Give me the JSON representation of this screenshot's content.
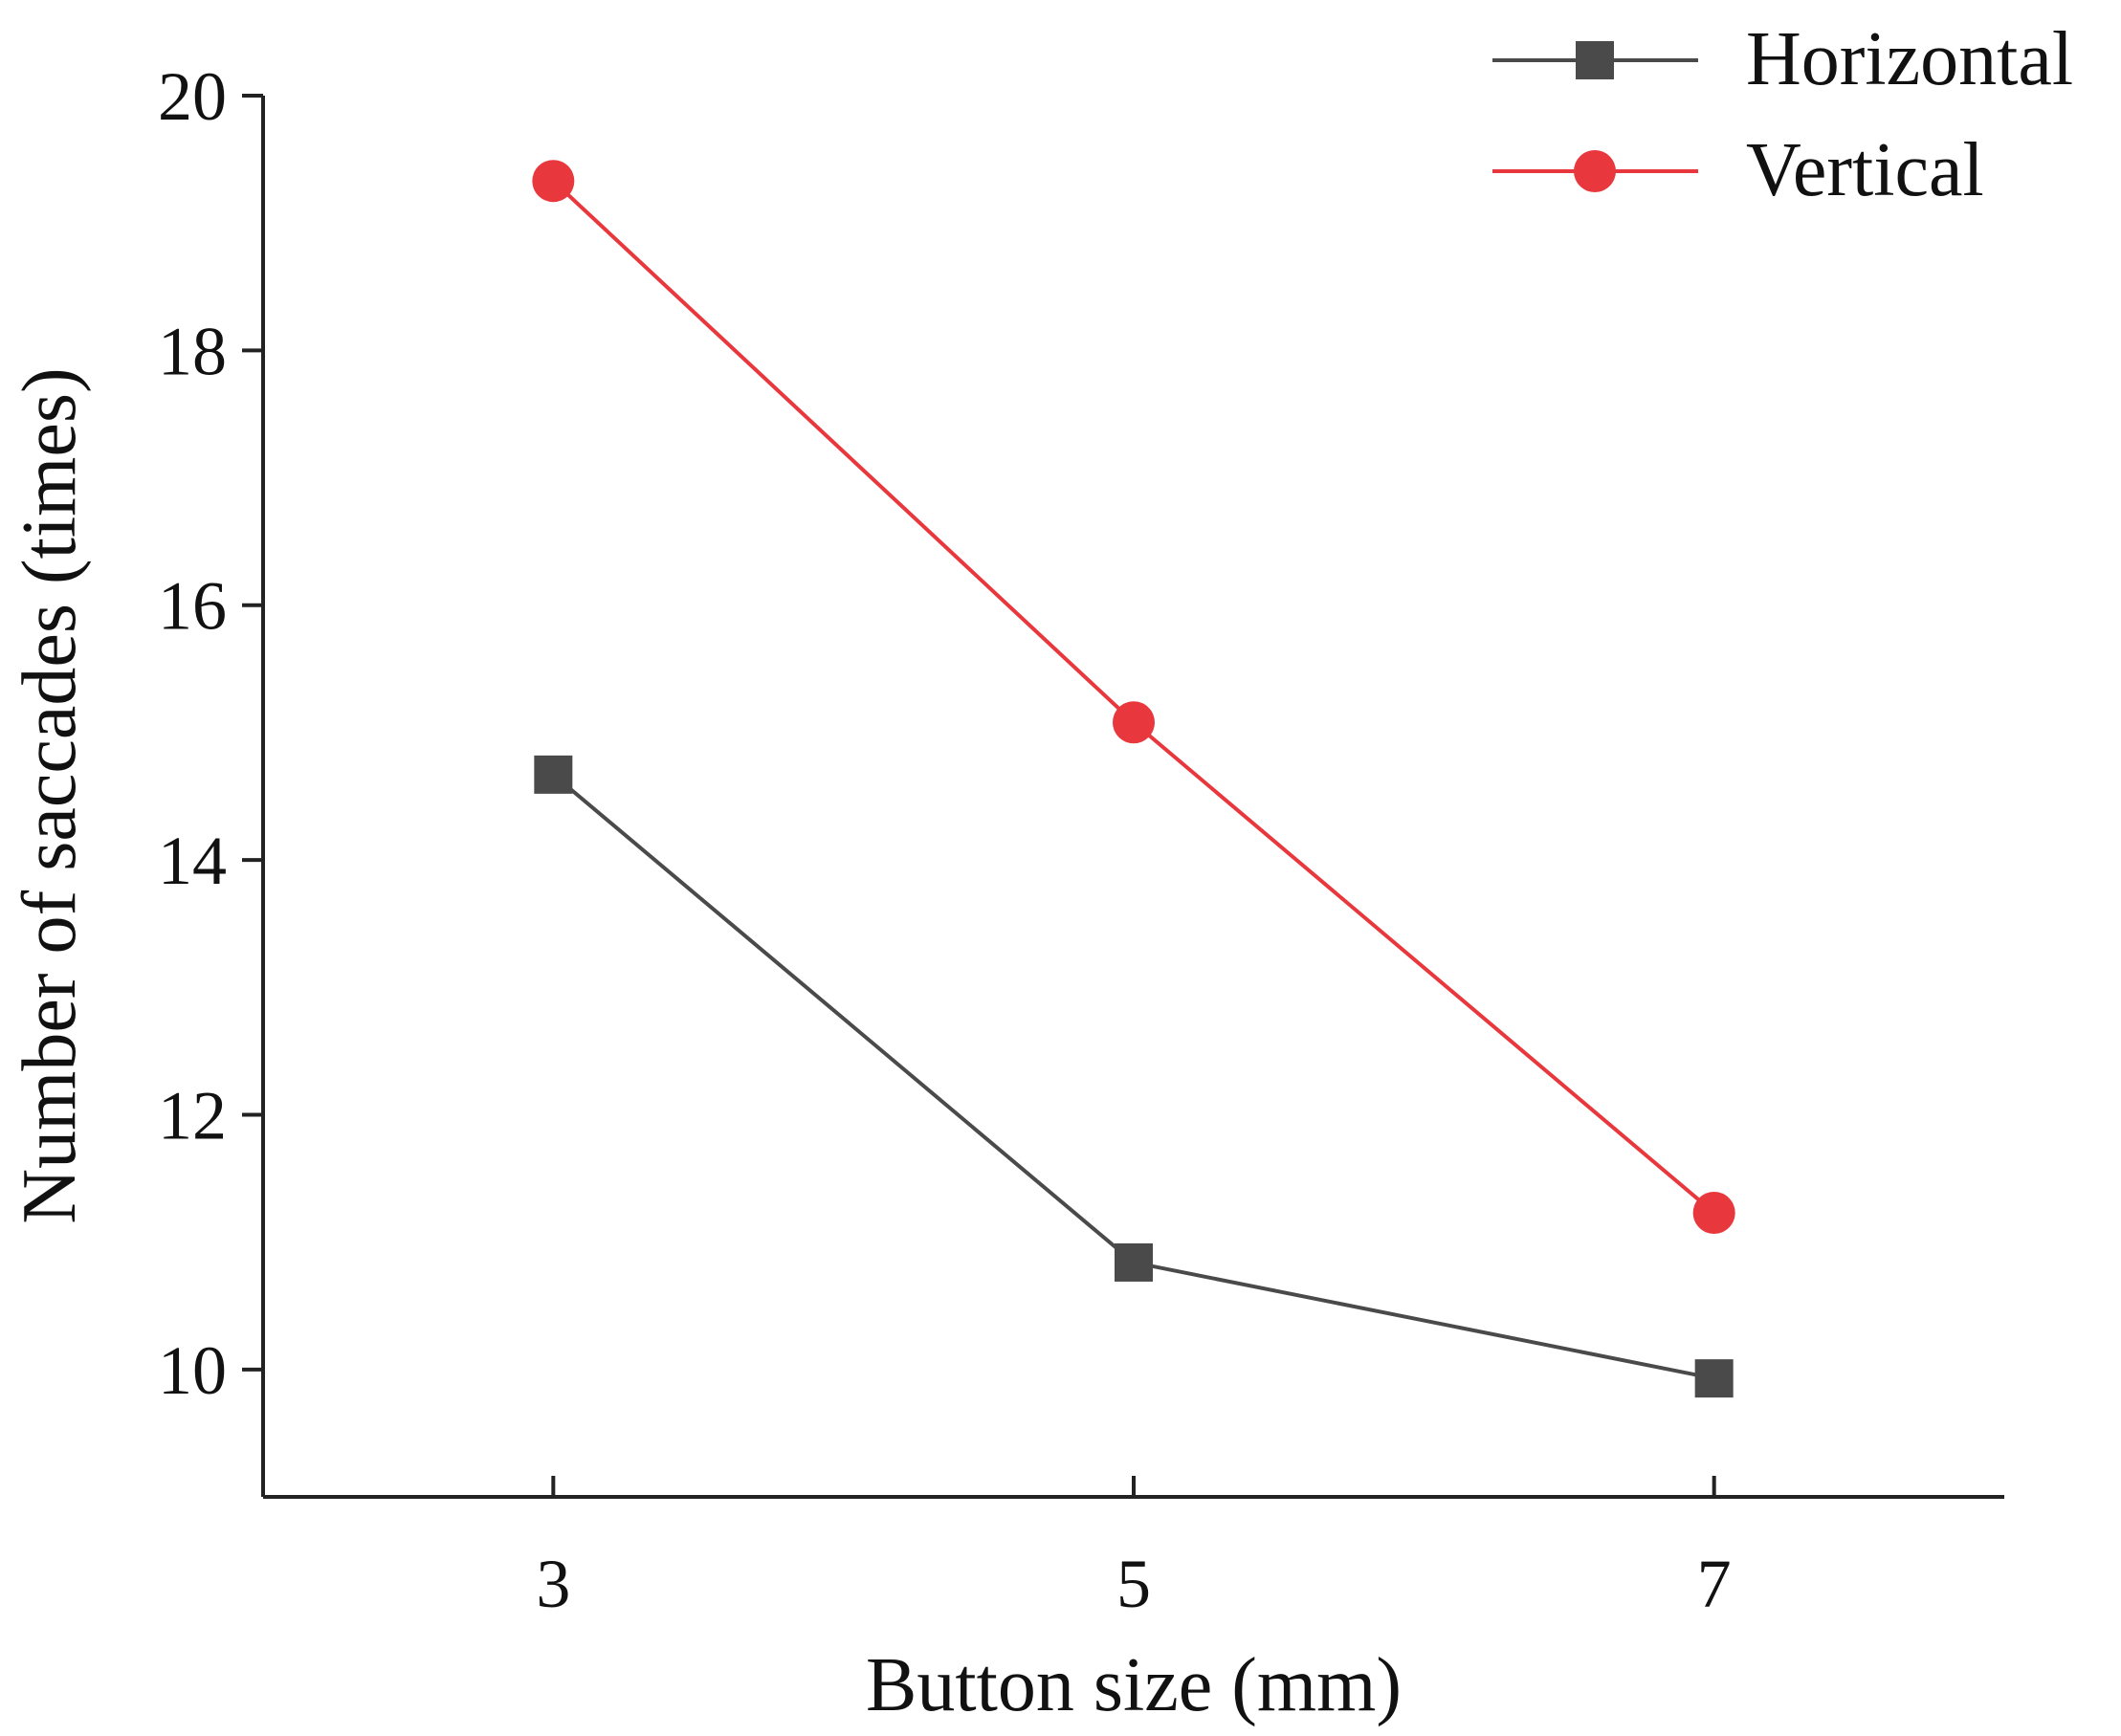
{
  "chart_data": {
    "type": "line",
    "xlabel": "Button size (mm)",
    "ylabel": "Number of saccades (times)",
    "categories": [
      3,
      5,
      7
    ],
    "x_ticks": [
      "3",
      "5",
      "7"
    ],
    "x_range": [
      2,
      8
    ],
    "ylim": [
      9,
      20
    ],
    "y_ticks": [
      "10",
      "12",
      "14",
      "16",
      "18",
      "20"
    ],
    "grid": false,
    "legend_position": "top-right",
    "series": [
      {
        "name": "Horizontal",
        "marker": "square",
        "color": "#4a4a4a",
        "values": [
          14.67,
          10.84,
          9.93
        ]
      },
      {
        "name": "Vertical",
        "marker": "circle",
        "color": "#e8383d",
        "values": [
          19.33,
          15.08,
          11.23
        ]
      }
    ]
  }
}
